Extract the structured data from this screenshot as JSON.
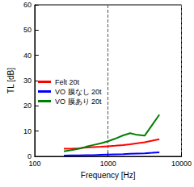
{
  "chart_data": {
    "type": "line",
    "x_label": "Frequency [Hz]",
    "y_label": "TL [dB]",
    "x": [
      250,
      315,
      400,
      500,
      630,
      800,
      1000,
      1250,
      1600,
      2000,
      2500,
      3150,
      4000,
      5000
    ],
    "series": [
      {
        "name": "Felt 20t",
        "color": "#ff0000",
        "values": [
          3,
          3,
          3.2,
          3.5,
          3.7,
          3.8,
          4,
          4.2,
          4.5,
          4.8,
          5.2,
          5.6,
          6.2,
          6.8
        ]
      },
      {
        "name": "VO 膜なし 20t",
        "color": "#0000ff",
        "values": [
          0.3,
          0.4,
          0.4,
          0.5,
          0.5,
          0.6,
          0.7,
          0.8,
          0.9,
          1.0,
          1.1,
          1.2,
          1.4,
          1.6
        ]
      },
      {
        "name": "VO 膜あり 20t",
        "color": "#008000",
        "values": [
          2,
          2.5,
          3,
          3.8,
          4.5,
          5.2,
          6,
          7,
          8.3,
          9.2,
          8.5,
          8.2,
          12.5,
          16.5
        ]
      }
    ],
    "xlim": [
      100,
      10000
    ],
    "xticks": [
      100,
      1000,
      10000
    ],
    "ylim": [
      0,
      60
    ],
    "yticks": [
      0,
      10,
      20,
      30,
      40,
      50,
      60
    ],
    "log": "x",
    "grid": true,
    "legend": "upper left"
  }
}
